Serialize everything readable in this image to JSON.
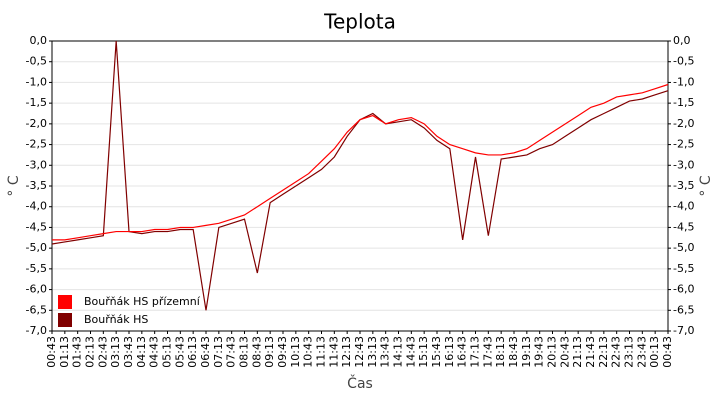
{
  "chart_data": {
    "type": "line",
    "title": "Teplota",
    "x_label": "Čas",
    "y_label": "° C",
    "categories": [
      "00:43",
      "01:13",
      "01:43",
      "02:13",
      "02:43",
      "03:13",
      "03:43",
      "04:13",
      "04:43",
      "05:13",
      "05:43",
      "06:13",
      "06:43",
      "07:13",
      "07:43",
      "08:13",
      "08:43",
      "09:13",
      "09:43",
      "10:13",
      "10:43",
      "11:13",
      "11:43",
      "12:13",
      "12:43",
      "13:13",
      "13:43",
      "14:13",
      "14:43",
      "15:13",
      "15:43",
      "16:13",
      "16:43",
      "17:13",
      "17:43",
      "18:13",
      "18:43",
      "19:13",
      "19:43",
      "20:13",
      "20:43",
      "21:13",
      "21:43",
      "22:13",
      "22:43",
      "23:13",
      "23:43",
      "00:13",
      "00:43"
    ],
    "series": [
      {
        "name": "Bouřňák HS přízemní",
        "color": "#ff0000",
        "values": [
          -4.8,
          -4.8,
          -4.75,
          -4.7,
          -4.65,
          -4.6,
          -4.6,
          -4.6,
          -4.55,
          -4.55,
          -4.5,
          -4.5,
          -4.45,
          -4.4,
          -4.3,
          -4.2,
          -4.0,
          -3.8,
          -3.6,
          -3.4,
          -3.2,
          -2.9,
          -2.6,
          -2.2,
          -1.9,
          -1.8,
          -2.0,
          -1.9,
          -1.85,
          -2.0,
          -2.3,
          -2.5,
          -2.6,
          -2.7,
          -2.75,
          -2.75,
          -2.7,
          -2.6,
          -2.4,
          -2.2,
          -2.0,
          -1.8,
          -1.6,
          -1.5,
          -1.35,
          -1.3,
          -1.25,
          -1.15,
          -1.05
        ]
      },
      {
        "name": "Bouřňák HS",
        "color": "#800000",
        "values": [
          -4.9,
          -4.85,
          -4.8,
          -4.75,
          -4.7,
          0,
          -4.6,
          -4.65,
          -4.6,
          -4.6,
          -4.55,
          -4.55,
          -6.5,
          -4.5,
          -4.4,
          -4.3,
          -5.6,
          -3.9,
          -3.7,
          -3.5,
          -3.3,
          -3.1,
          -2.8,
          -2.3,
          -1.9,
          -1.75,
          -2.0,
          -1.95,
          -1.9,
          -2.1,
          -2.4,
          -2.6,
          -4.8,
          -2.8,
          -4.7,
          -2.85,
          -2.8,
          -2.75,
          -2.6,
          -2.5,
          -2.3,
          -2.1,
          -1.9,
          -1.75,
          -1.6,
          -1.45,
          -1.4,
          -1.3,
          -1.2
        ]
      }
    ],
    "ylim": [
      -7,
      0
    ],
    "yticks": [
      {
        "value": 0,
        "label": "0,0"
      },
      {
        "value": -0.5,
        "label": "-0,5"
      },
      {
        "value": -1,
        "label": "-1,0"
      },
      {
        "value": -1.5,
        "label": "-1,5"
      },
      {
        "value": -2,
        "label": "-2,0"
      },
      {
        "value": -2.5,
        "label": "-2,5"
      },
      {
        "value": -3,
        "label": "-3,0"
      },
      {
        "value": -3.5,
        "label": "-3,5"
      },
      {
        "value": -4,
        "label": "-4,0"
      },
      {
        "value": -4.5,
        "label": "-4,5"
      },
      {
        "value": -5,
        "label": "-5,0"
      },
      {
        "value": -5.5,
        "label": "-5,5"
      },
      {
        "value": -6,
        "label": "-6,0"
      },
      {
        "value": -6.5,
        "label": "-6,5"
      },
      {
        "value": -7,
        "label": "-7,0"
      }
    ],
    "grid": true,
    "legend": "lower left"
  }
}
